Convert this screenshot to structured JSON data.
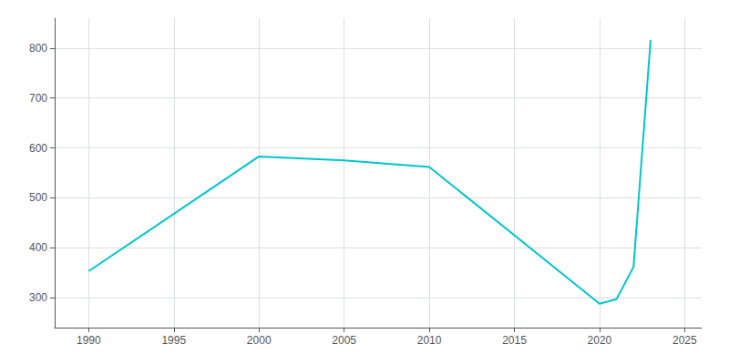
{
  "chart_data": {
    "type": "line",
    "x": [
      1990,
      2000,
      2005,
      2010,
      2020,
      2021,
      2022,
      2023
    ],
    "values": [
      353,
      583,
      575,
      562,
      288,
      297,
      362,
      816
    ],
    "color": "#00c5cd",
    "xlim": [
      1988,
      2026
    ],
    "ylim": [
      240,
      860
    ],
    "xticks": [
      1990,
      1995,
      2000,
      2005,
      2010,
      2015,
      2020,
      2025
    ],
    "yticks": [
      300,
      400,
      500,
      600,
      700,
      800
    ],
    "grid": true
  }
}
